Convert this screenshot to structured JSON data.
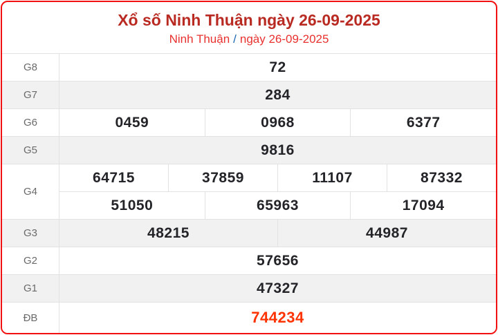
{
  "header": {
    "title": "Xổ số Ninh Thuận ngày 26-09-2025",
    "subtitle": {
      "province": "Ninh Thuận",
      "separator": "/",
      "date": "ngày 26-09-2025"
    }
  },
  "table": {
    "rows": [
      {
        "label": "G8",
        "shade": false,
        "special": false,
        "groups": [
          [
            "72"
          ]
        ]
      },
      {
        "label": "G7",
        "shade": true,
        "special": false,
        "groups": [
          [
            "284"
          ]
        ]
      },
      {
        "label": "G6",
        "shade": false,
        "special": false,
        "groups": [
          [
            "0459",
            "0968",
            "6377"
          ]
        ]
      },
      {
        "label": "G5",
        "shade": true,
        "special": false,
        "groups": [
          [
            "9816"
          ]
        ]
      },
      {
        "label": "G4",
        "shade": false,
        "special": false,
        "groups": [
          [
            "64715",
            "37859",
            "11107",
            "87332"
          ],
          [
            "51050",
            "65963",
            "17094"
          ]
        ]
      },
      {
        "label": "G3",
        "shade": true,
        "special": false,
        "groups": [
          [
            "48215",
            "44987"
          ]
        ]
      },
      {
        "label": "G2",
        "shade": false,
        "special": false,
        "groups": [
          [
            "57656"
          ]
        ]
      },
      {
        "label": "G1",
        "shade": true,
        "special": false,
        "groups": [
          [
            "47327"
          ]
        ]
      },
      {
        "label": "ĐB",
        "shade": false,
        "special": true,
        "groups": [
          [
            "744234"
          ]
        ]
      }
    ]
  },
  "colors": {
    "card_border": "#f10f0f",
    "title": "#b82a22",
    "subtitle_red": "#e8312f",
    "subtitle_slash_blue": "#1a67b6",
    "label_gray": "#6a6a6a",
    "value_dark": "#222428",
    "special_red": "#fe3302",
    "row_shade": "#f1f1f1",
    "grid_border": "#e2e2e2"
  }
}
